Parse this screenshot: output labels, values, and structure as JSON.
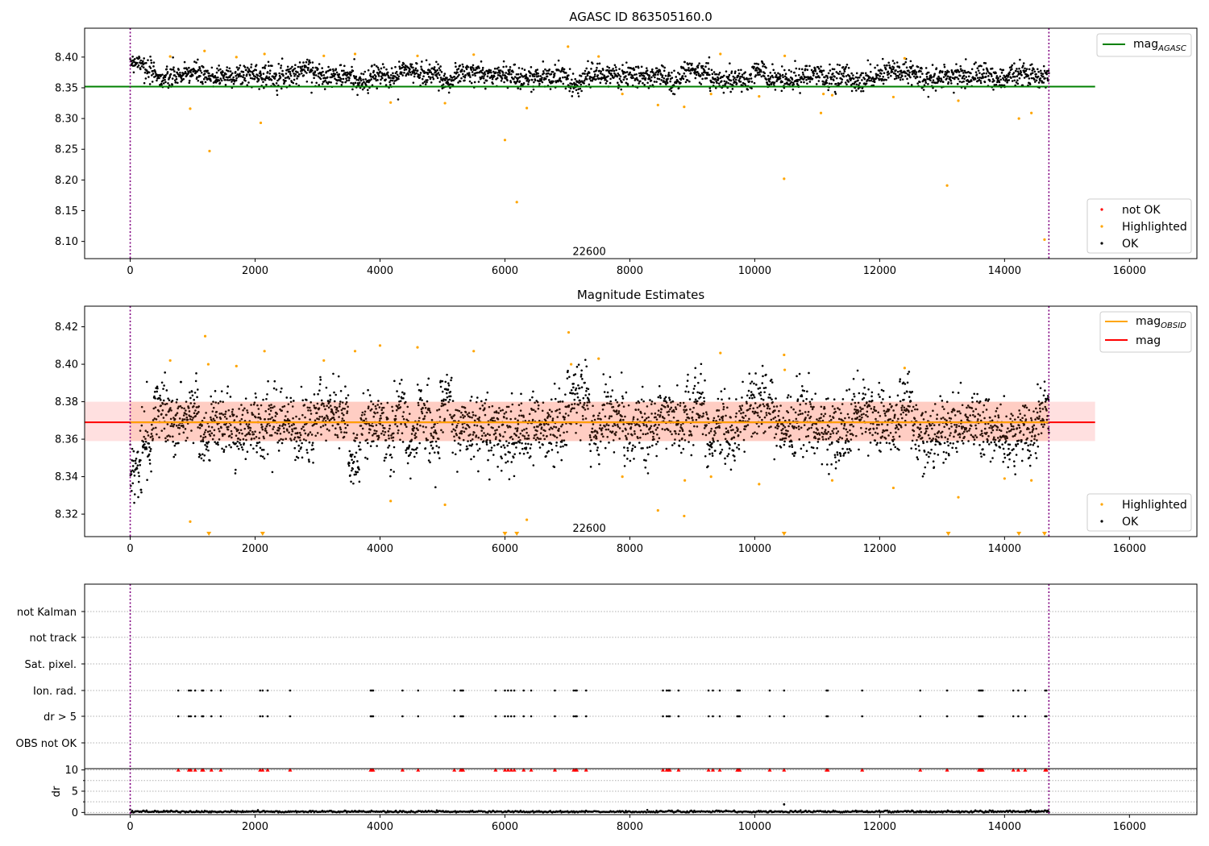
{
  "chart_data": [
    {
      "type": "scatter",
      "title": "AGASC ID 863505160.0",
      "xlim": [
        -730,
        17080
      ],
      "ylim": [
        8.072,
        8.447
      ],
      "xticks": [
        0,
        2000,
        4000,
        6000,
        8000,
        10000,
        12000,
        14000,
        16000
      ],
      "yticks": [
        8.1,
        8.15,
        8.2,
        8.25,
        8.3,
        8.35,
        8.4
      ],
      "ytick_labels": [
        "8.10",
        "8.15",
        "8.20",
        "8.25",
        "8.30",
        "8.35",
        "8.40"
      ],
      "vlines": [
        0,
        14710
      ],
      "annotation": {
        "text": "22600",
        "x": 7350,
        "y": 8.083
      },
      "reference_line": {
        "label": "mag",
        "label_sub": "AGASC",
        "value": 8.352,
        "x_range": [
          -730,
          15450
        ],
        "color": "#008000"
      },
      "ok_band": {
        "center": 8.369,
        "spread": 0.009,
        "x_range": [
          0,
          14710
        ]
      },
      "series": [
        {
          "name": "not OK",
          "color": "#ff0000",
          "values": []
        },
        {
          "name": "Highlighted",
          "color": "#ffa500",
          "points": [
            [
              960,
              8.316
            ],
            [
              1190,
              8.41
            ],
            [
              1270,
              8.247
            ],
            [
              2090,
              8.293
            ],
            [
              2150,
              8.405
            ],
            [
              4170,
              8.326
            ],
            [
              5040,
              8.325
            ],
            [
              6000,
              8.265
            ],
            [
              6190,
              8.164
            ],
            [
              6350,
              8.317
            ],
            [
              7010,
              8.417
            ],
            [
              7880,
              8.34
            ],
            [
              8450,
              8.322
            ],
            [
              8870,
              8.319
            ],
            [
              9450,
              8.405
            ],
            [
              10070,
              8.336
            ],
            [
              10470,
              8.202
            ],
            [
              10480,
              8.402
            ],
            [
              11060,
              8.309
            ],
            [
              11240,
              8.338
            ],
            [
              12220,
              8.335
            ],
            [
              13080,
              8.191
            ],
            [
              13260,
              8.329
            ],
            [
              14230,
              8.3
            ],
            [
              14430,
              8.309
            ],
            [
              14640,
              8.103
            ],
            [
              640,
              8.401
            ],
            [
              1700,
              8.4
            ],
            [
              3100,
              8.402
            ],
            [
              3600,
              8.405
            ],
            [
              4600,
              8.402
            ],
            [
              5500,
              8.404
            ],
            [
              7500,
              8.401
            ],
            [
              12400,
              8.398
            ],
            [
              9300,
              8.34
            ],
            [
              11100,
              8.34
            ]
          ]
        },
        {
          "name": "OK",
          "color": "#000000"
        }
      ],
      "legend": {
        "lines_position": "upper right",
        "markers_position": "lower right"
      }
    },
    {
      "type": "scatter",
      "title": "Magnitude Estimates",
      "xlim": [
        -730,
        17080
      ],
      "ylim": [
        8.308,
        8.431
      ],
      "xticks": [
        0,
        2000,
        4000,
        6000,
        8000,
        10000,
        12000,
        14000,
        16000
      ],
      "yticks": [
        8.32,
        8.34,
        8.36,
        8.38,
        8.4,
        8.42
      ],
      "ytick_labels": [
        "8.32",
        "8.34",
        "8.36",
        "8.38",
        "8.40",
        "8.42"
      ],
      "vlines": [
        0,
        14710
      ],
      "annotation": {
        "text": "22600",
        "x": 7350,
        "y": 8.311
      },
      "mag_line": {
        "label": "mag",
        "value": 8.369,
        "color": "#ff0000",
        "band": [
          8.359,
          8.38
        ],
        "x_range": [
          -730,
          15450
        ]
      },
      "mag_obsid": {
        "label": "mag",
        "label_sub": "OBSID",
        "color": "#ffa500",
        "values": [
          [
            0,
            8.369
          ],
          [
            14710,
            8.369
          ]
        ]
      },
      "series": [
        {
          "name": "Highlighted",
          "color": "#ffa500",
          "points": [
            [
              960,
              8.316
            ],
            [
              1200,
              8.415
            ],
            [
              1250,
              8.4
            ],
            [
              2150,
              8.407
            ],
            [
              4170,
              8.327
            ],
            [
              5040,
              8.325
            ],
            [
              6350,
              8.317
            ],
            [
              7020,
              8.417
            ],
            [
              7060,
              8.4
            ],
            [
              7880,
              8.34
            ],
            [
              8450,
              8.322
            ],
            [
              8870,
              8.319
            ],
            [
              8880,
              8.338
            ],
            [
              9450,
              8.406
            ],
            [
              10070,
              8.336
            ],
            [
              10470,
              8.405
            ],
            [
              10480,
              8.397
            ],
            [
              11240,
              8.338
            ],
            [
              12220,
              8.334
            ],
            [
              13260,
              8.329
            ],
            [
              640,
              8.402
            ],
            [
              1700,
              8.399
            ],
            [
              3100,
              8.402
            ],
            [
              3600,
              8.407
            ],
            [
              4000,
              8.41
            ],
            [
              4600,
              8.409
            ],
            [
              5500,
              8.407
            ],
            [
              7500,
              8.403
            ],
            [
              12400,
              8.398
            ],
            [
              9300,
              8.34
            ],
            [
              14000,
              8.339
            ],
            [
              14430,
              8.338
            ]
          ],
          "clipped_points_x": [
            1260,
            2120,
            6000,
            6190,
            10470,
            13100,
            14230,
            14640
          ]
        },
        {
          "name": "OK",
          "color": "#000000"
        }
      ],
      "legend": {
        "lines_position": "upper right",
        "markers_position": "lower right"
      }
    },
    {
      "type": "scatter",
      "xlim": [
        -730,
        17080
      ],
      "xticks": [
        0,
        2000,
        4000,
        6000,
        8000,
        10000,
        12000,
        14000,
        16000
      ],
      "vlines": [
        0,
        14710
      ],
      "flag_rows": [
        "not Kalman",
        "not track",
        "Sat. pixel.",
        "Ion. rad.",
        "dr > 5",
        "OBS not OK"
      ],
      "flag_x": [
        770,
        940,
        970,
        1040,
        1150,
        1170,
        1300,
        1450,
        2080,
        2120,
        2200,
        2560,
        3850,
        3870,
        3890,
        4360,
        4610,
        5190,
        5290,
        5310,
        5330,
        5850,
        6000,
        6050,
        6100,
        6150,
        6300,
        6420,
        6800,
        7100,
        7130,
        7150,
        7300,
        8530,
        8590,
        8620,
        8640,
        8780,
        9260,
        9330,
        9440,
        9720,
        9740,
        9760,
        10240,
        10470,
        11150,
        11170,
        11720,
        12650,
        13080,
        13590,
        13610,
        13630,
        13650,
        14140,
        14220,
        14330,
        14650,
        14670
      ],
      "flag_rows_active": [
        "Ion. rad.",
        "dr > 5"
      ]
    },
    {
      "type": "scatter",
      "ylabel": "dr",
      "xlim": [
        -730,
        17080
      ],
      "ylim": [
        -0.5,
        10.3
      ],
      "xticks": [
        0,
        2000,
        4000,
        6000,
        8000,
        10000,
        12000,
        14000,
        16000
      ],
      "yticks": [
        0,
        5,
        10
      ],
      "vlines": [
        0,
        14710
      ],
      "dr_clip_value": 10,
      "dr_clip_color": "#ff0000",
      "dr_typical": 0.2,
      "dr_outlier": [
        10470,
        1.9
      ]
    }
  ]
}
